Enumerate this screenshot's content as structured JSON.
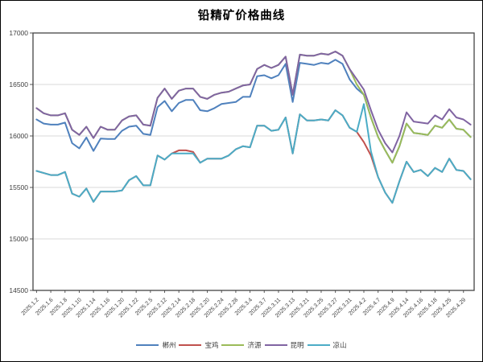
{
  "chart_data": {
    "type": "line",
    "title": "铅精矿价格曲线",
    "xlabel": "",
    "ylabel": "",
    "ylim": [
      14500,
      17000
    ],
    "yticks": [
      14500,
      15000,
      15500,
      16000,
      16500,
      17000
    ],
    "grid": true,
    "legend_position": "bottom",
    "categories": [
      "2025.1.2",
      "",
      "2025.1.6",
      "",
      "2025.1.8",
      "",
      "2025.1.10",
      "",
      "2025.1.14",
      "",
      "2025.1.16",
      "",
      "2025.1.20",
      "",
      "2025.1.22",
      "",
      "2025.2.5",
      "",
      "2025.2.12",
      "",
      "2025.2.14",
      "",
      "2025.2.18",
      "",
      "2025.2.20",
      "",
      "2025.2.24",
      "",
      "2025.2.28",
      "",
      "2025.3.4",
      "",
      "2025.3.7",
      "",
      "2025.3.11",
      "",
      "2025.3.13",
      "",
      "2025.3.21",
      "",
      "2025.3.25",
      "",
      "2025.3.27",
      "",
      "2025.3.31",
      "",
      "2025.4.2",
      "",
      "2025.4.7",
      "",
      "2025.4.9",
      "",
      "2025.4.14",
      "",
      "2025.4.16",
      "",
      "2025.4.18",
      "",
      "2025.4.25",
      "",
      "2025.4.29",
      ""
    ],
    "series": [
      {
        "name": "郴州",
        "color": "#4F81BD",
        "values": [
          16160,
          16120,
          16110,
          16110,
          16130,
          15930,
          15880,
          15985,
          15855,
          15975,
          15970,
          15970,
          16050,
          16090,
          16100,
          16020,
          16010,
          16280,
          16340,
          16240,
          16320,
          16350,
          16350,
          16250,
          16240,
          16270,
          16310,
          16320,
          16330,
          16380,
          16380,
          16580,
          16590,
          16560,
          16590,
          16700,
          16330,
          16710,
          16700,
          16690,
          16710,
          16700,
          16740,
          16700,
          16550,
          16460,
          16400,
          16180,
          15990,
          15860,
          15740,
          15900,
          16120,
          16030,
          16020,
          16010,
          16100,
          16080,
          16160,
          16070,
          16060,
          15990
        ]
      },
      {
        "name": "宝鸡",
        "color": "#C0504D",
        "values": [
          15660,
          15640,
          15620,
          15620,
          15650,
          15440,
          15410,
          15490,
          15360,
          15460,
          15460,
          15460,
          15470,
          15570,
          15610,
          15520,
          15520,
          15810,
          15770,
          15830,
          15860,
          15860,
          15845,
          15740,
          15780,
          15780,
          15780,
          15810,
          15870,
          15900,
          15890,
          16100,
          16100,
          16050,
          16060,
          16180,
          15830,
          16210,
          16150,
          16150,
          16160,
          16150,
          16250,
          16200,
          16080,
          16040,
          15940,
          15810,
          15600,
          15450,
          15350,
          15560,
          15750,
          15650,
          15670,
          15610,
          15690,
          15650,
          15780,
          15670,
          15660,
          15580
        ]
      },
      {
        "name": "济源",
        "color": "#9BBB59",
        "values": [
          16270,
          16220,
          16200,
          16200,
          16220,
          16060,
          16010,
          16090,
          15980,
          16090,
          16060,
          16060,
          16150,
          16190,
          16200,
          16110,
          16100,
          16370,
          16460,
          16360,
          16440,
          16460,
          16460,
          16380,
          16360,
          16400,
          16420,
          16430,
          16460,
          16490,
          16500,
          16650,
          16690,
          16660,
          16690,
          16770,
          16400,
          16790,
          16780,
          16780,
          16800,
          16790,
          16820,
          16780,
          16650,
          16500,
          16400,
          16180,
          15990,
          15860,
          15740,
          15900,
          16120,
          16030,
          16020,
          16010,
          16100,
          16080,
          16160,
          16070,
          16060,
          15990
        ]
      },
      {
        "name": "昆明",
        "color": "#8064A2",
        "values": [
          16270,
          16220,
          16200,
          16200,
          16220,
          16060,
          16010,
          16090,
          15980,
          16090,
          16060,
          16060,
          16150,
          16190,
          16200,
          16110,
          16100,
          16370,
          16460,
          16360,
          16440,
          16460,
          16460,
          16380,
          16360,
          16400,
          16420,
          16430,
          16460,
          16490,
          16500,
          16650,
          16690,
          16660,
          16690,
          16770,
          16400,
          16790,
          16780,
          16780,
          16800,
          16790,
          16820,
          16780,
          16650,
          16550,
          16450,
          16250,
          16060,
          15930,
          15840,
          16000,
          16230,
          16140,
          16130,
          16120,
          16200,
          16160,
          16260,
          16180,
          16160,
          16110
        ]
      },
      {
        "name": "凉山",
        "color": "#4BACC6",
        "values": [
          15660,
          15640,
          15620,
          15620,
          15650,
          15440,
          15410,
          15490,
          15360,
          15460,
          15460,
          15460,
          15470,
          15570,
          15610,
          15520,
          15520,
          15810,
          15770,
          15830,
          15830,
          15830,
          15830,
          15740,
          15780,
          15780,
          15780,
          15810,
          15870,
          15900,
          15890,
          16100,
          16100,
          16050,
          16060,
          16180,
          15830,
          16210,
          16150,
          16150,
          16160,
          16150,
          16250,
          16200,
          16080,
          16040,
          16310,
          15850,
          15600,
          15450,
          15350,
          15560,
          15750,
          15650,
          15670,
          15610,
          15690,
          15650,
          15780,
          15670,
          15660,
          15580
        ]
      }
    ]
  }
}
